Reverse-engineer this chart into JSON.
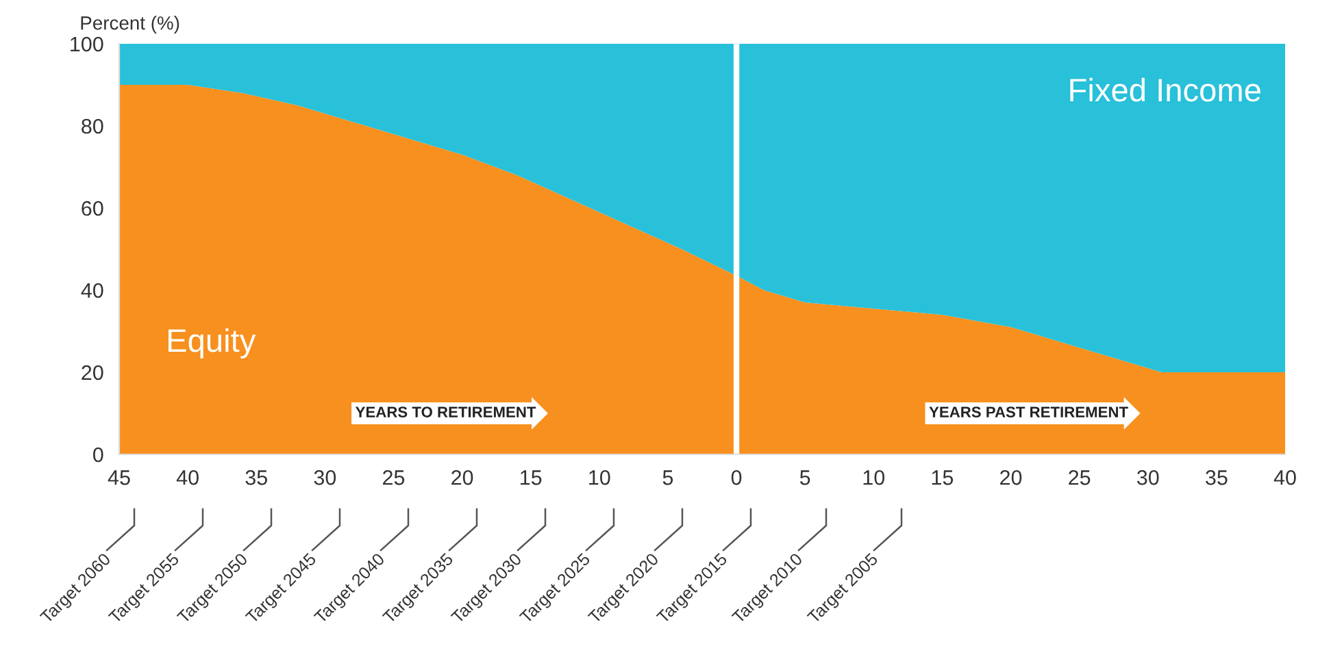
{
  "chart_data": {
    "type": "area",
    "stacked": true,
    "ylabel": "Percent (%)",
    "x": [
      -45,
      -40,
      -36,
      -32,
      -28,
      -24,
      -20,
      -16,
      -12,
      -8,
      -4,
      -0.3,
      0.3,
      2,
      5,
      10,
      15,
      20,
      25,
      30,
      31,
      40
    ],
    "series": [
      {
        "name": "Equity",
        "color": "#f7901e",
        "values": [
          90,
          90,
          88,
          85,
          81,
          77,
          73,
          68,
          62,
          56,
          50,
          44,
          43,
          40,
          37,
          35.5,
          34,
          31,
          26,
          21,
          20,
          20
        ]
      },
      {
        "name": "Fixed Income",
        "color": "#29c0d9",
        "values": [
          10,
          10,
          12,
          15,
          19,
          23,
          27,
          32,
          38,
          44,
          50,
          56,
          57,
          60,
          63,
          64.5,
          66,
          69,
          74,
          79,
          80,
          80
        ]
      }
    ],
    "xlim": [
      -45,
      40
    ],
    "ylim": [
      0,
      100
    ],
    "xticks": [
      {
        "value": -45,
        "label": "45"
      },
      {
        "value": -40,
        "label": "40"
      },
      {
        "value": -35,
        "label": "35"
      },
      {
        "value": -30,
        "label": "30"
      },
      {
        "value": -25,
        "label": "25"
      },
      {
        "value": -20,
        "label": "20"
      },
      {
        "value": -15,
        "label": "15"
      },
      {
        "value": -10,
        "label": "10"
      },
      {
        "value": -5,
        "label": "5"
      },
      0,
      5,
      10,
      15,
      20,
      25,
      30,
      35,
      40
    ],
    "yticks": [
      0,
      20,
      40,
      60,
      80,
      100
    ],
    "grid": false,
    "legend": false,
    "ref_lines": [
      {
        "axis": "x",
        "value": 0,
        "color": "#ffffff"
      }
    ],
    "annotations": [
      "YEARS TO RETIREMENT",
      "YEARS PAST RETIREMENT",
      "Target 2060",
      "Target 2055",
      "Target 2050",
      "Target 2045",
      "Target 2040",
      "Target 2035",
      "Target 2030",
      "Target 2025",
      "Target 2020",
      "Target 2015",
      "Target 2010",
      "Target 2005"
    ]
  }
}
